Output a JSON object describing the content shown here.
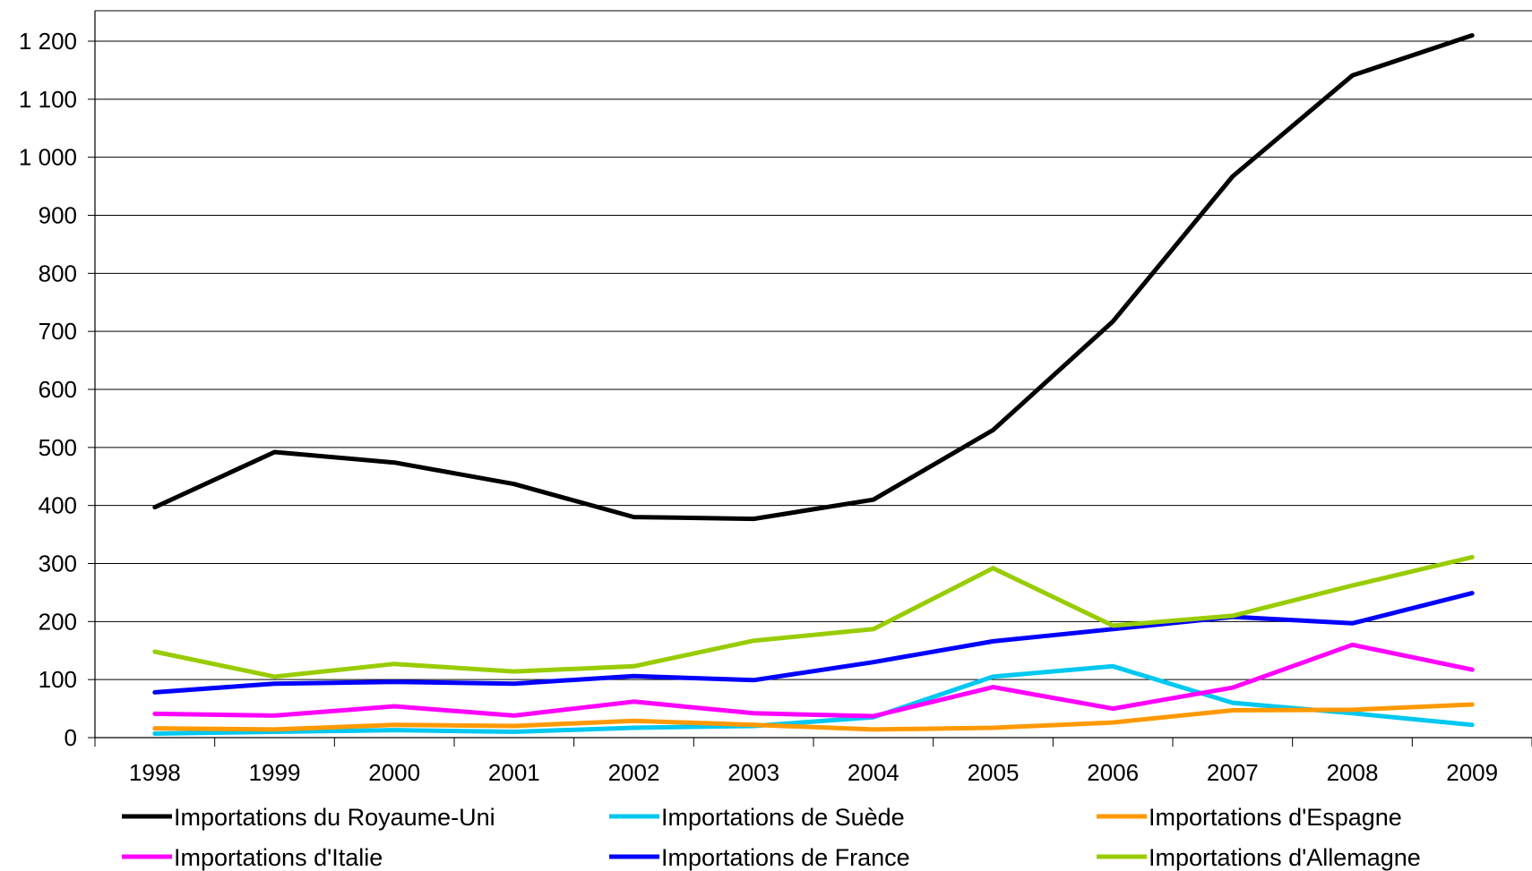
{
  "chart_data": {
    "type": "line",
    "title": "",
    "xlabel": "",
    "ylabel": "",
    "x": [
      "1998",
      "1999",
      "2000",
      "2001",
      "2002",
      "2003",
      "2004",
      "2005",
      "2006",
      "2007",
      "2008",
      "2009"
    ],
    "ylim": [
      0,
      1200
    ],
    "yticks": [
      0,
      100,
      200,
      300,
      400,
      500,
      600,
      700,
      800,
      900,
      1000,
      1100,
      1200
    ],
    "ytick_labels": [
      "0",
      "100",
      "200",
      "300",
      "400",
      "500",
      "600",
      "700",
      "800",
      "900",
      "1 000",
      "1 100",
      "1 200"
    ],
    "grid": "horizontal",
    "legend_position": "bottom",
    "series": [
      {
        "name": "Importations du Royaume-Uni",
        "color": "#000000",
        "values": [
          397,
          492,
          474,
          437,
          380,
          377,
          410,
          530,
          717,
          967,
          1141,
          1210
        ]
      },
      {
        "name": "Importations de Suède",
        "color": "#00c8f0",
        "values": [
          7,
          10,
          13,
          10,
          17,
          20,
          35,
          105,
          123,
          60,
          42,
          22
        ]
      },
      {
        "name": "Importations d'Espagne",
        "color": "#ff9900",
        "values": [
          16,
          14,
          22,
          20,
          29,
          22,
          14,
          17,
          26,
          47,
          48,
          57
        ]
      },
      {
        "name": "Importations d'Italie",
        "color": "#ff00ff",
        "values": [
          41,
          38,
          54,
          38,
          62,
          42,
          37,
          87,
          50,
          86,
          160,
          117
        ]
      },
      {
        "name": "Importations de France",
        "color": "#0000ff",
        "values": [
          78,
          93,
          96,
          93,
          106,
          99,
          130,
          166,
          187,
          208,
          197,
          249
        ]
      },
      {
        "name": "Importations d'Allemagne",
        "color": "#99cc00",
        "values": [
          148,
          105,
          127,
          114,
          123,
          167,
          187,
          292,
          193,
          210,
          262,
          311
        ]
      }
    ]
  }
}
